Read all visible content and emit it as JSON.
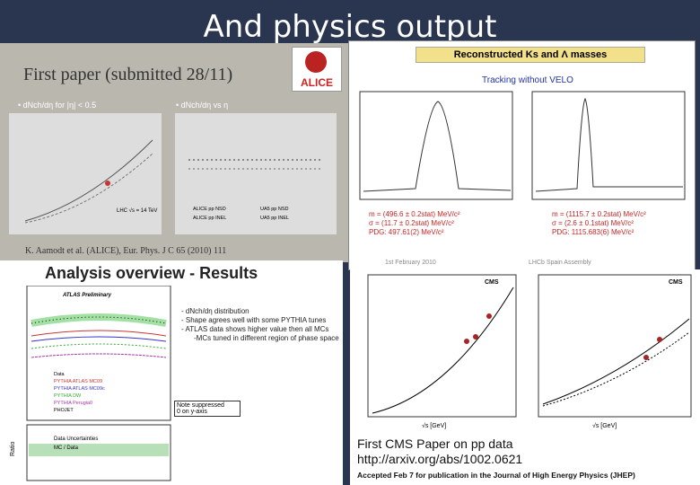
{
  "title": "And physics output",
  "alice": {
    "heading": "First paper (submitted 28/11)",
    "bullets": [
      "dNch/dη for |η| < 0.5",
      "dNch/dη vs η"
    ],
    "logo": "ALICE",
    "citation": "K. Aamodt et al. (ALICE), Eur. Phys. J C 65 (2010) 111",
    "annotation": "LHC √s = 14 TeV",
    "legend": [
      "ALICE pp NSD",
      "UA5 pp NSD",
      "ALICE pp INEL",
      "UA5 pp INEL"
    ]
  },
  "lhcb": {
    "heading": "Reconstructed Ks and Λ masses",
    "subheading": "Tracking without VELO",
    "results": [
      "m = (496.6 ± 0.2stat) MeV/c²",
      "σ = (11.7 ± 0.2stat) MeV/c²",
      "PDG: 497.61(2) MeV/c²",
      "m = (1115.7 ± 0.2stat) MeV/c²",
      "σ = (2.6 ± 0.1stat) MeV/c²",
      "PDG: 1115.683(6) MeV/c²"
    ],
    "footer": [
      "1st February 2010",
      "LHCb Spain Assembly"
    ]
  },
  "atlas": {
    "heading": "Analysis overview - Results",
    "label": "ATLAS Preliminary",
    "bullets": [
      "- dNch/dη distribution",
      "- Shape agrees well with some PYTHIA tunes",
      "- ATLAS data shows higher value then all MCs",
      "-MCs tuned in different region of phase space"
    ],
    "note": [
      "Note suppressed",
      "0 on y-axis"
    ],
    "legend": [
      "Data",
      "PYTHIA ATLAS MC09",
      "PYTHIA ATLAS MC09c",
      "PYTHIA DW",
      "PYTHIA Perugia0",
      "PHOJET"
    ],
    "lower_legend": [
      "Data Uncertainties",
      "MC / Data"
    ],
    "y_label": "Ratio"
  },
  "cms": {
    "labels": [
      "CMS",
      "CMS"
    ],
    "x_label": "√s [GeV]",
    "heading": "First CMS Paper on pp data",
    "link": "http://arxiv.org/abs/1002.0621",
    "accepted": "Accepted Feb 7 for publication in the Journal of High Energy Physics (JHEP)"
  }
}
